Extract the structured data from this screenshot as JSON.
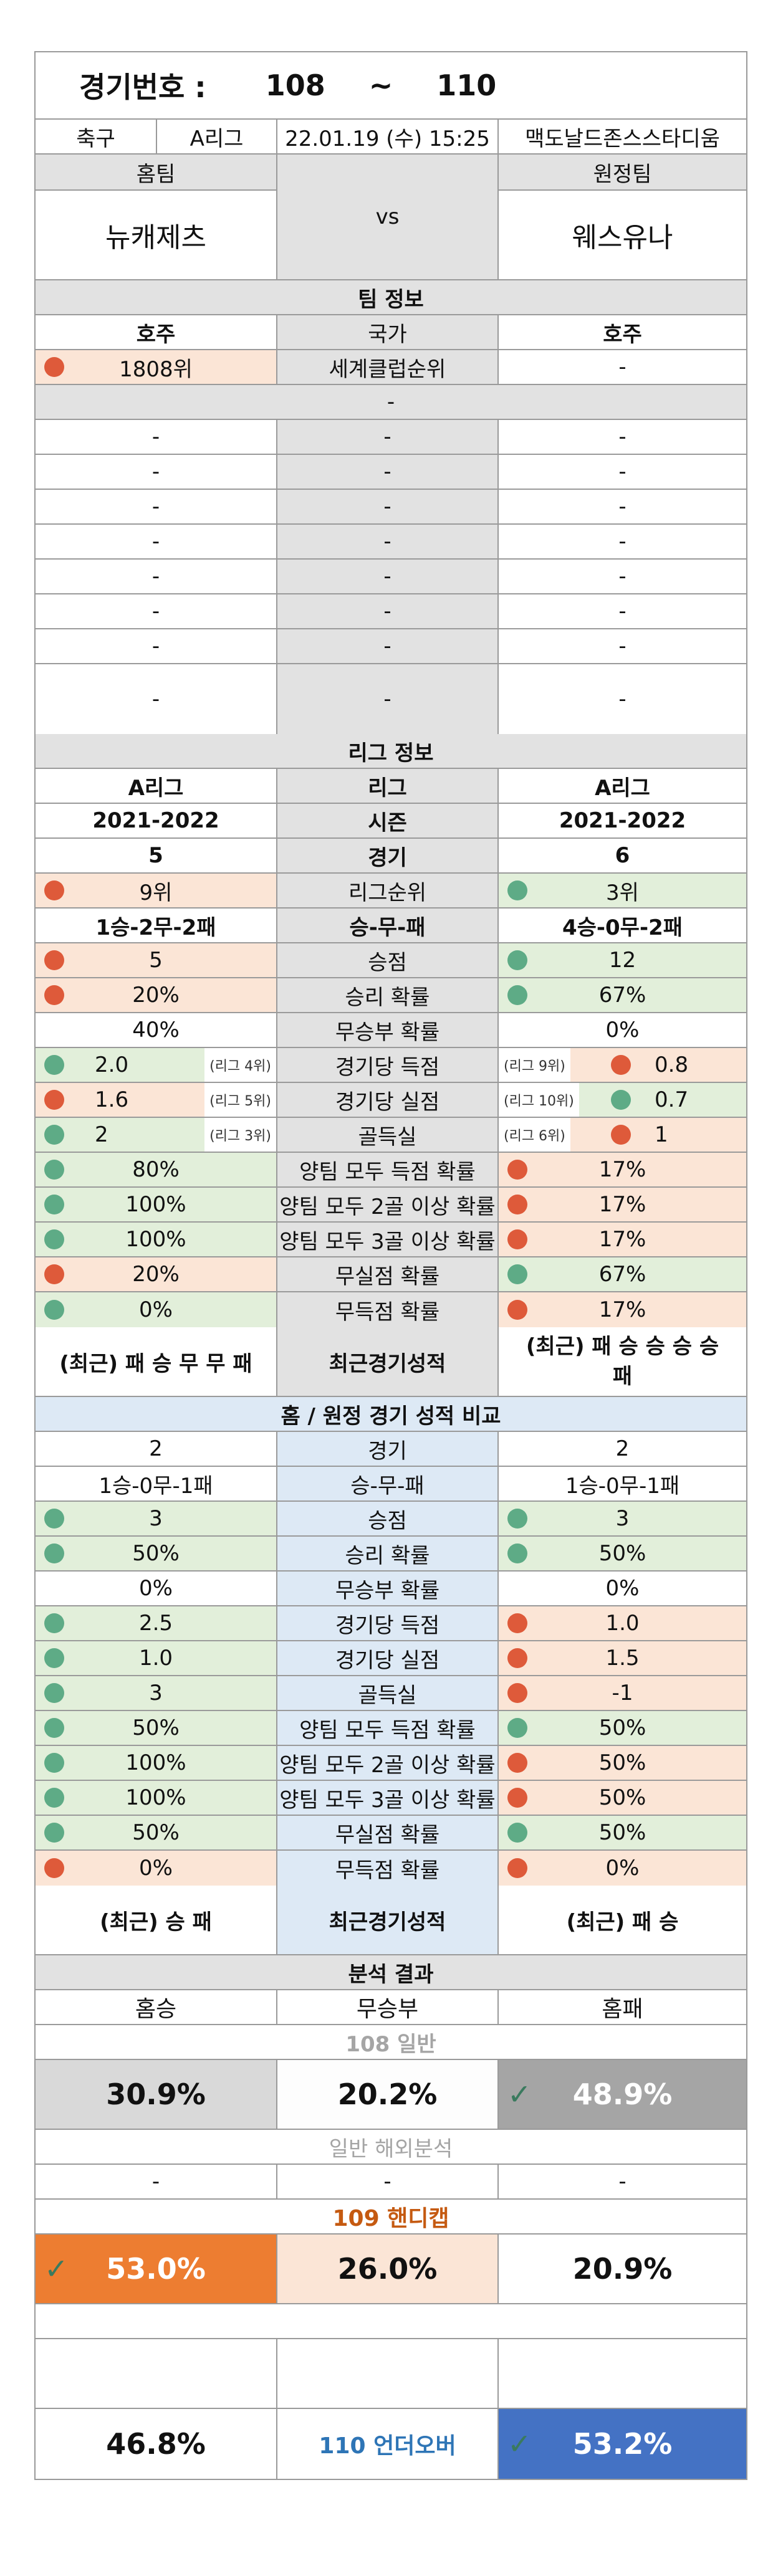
{
  "header": {
    "label": "경기번호 :",
    "from": "108",
    "sep": "~",
    "to": "110"
  },
  "match": {
    "sport": "축구",
    "league": "A리그",
    "datetime": "22.01.19 (수) 15:25",
    "venue": "맥도날드존스스타디움"
  },
  "teams": {
    "home_label": "홈팀",
    "away_label": "원정팀",
    "home": "뉴캐제츠",
    "vs": "vs",
    "away": "웨스유나"
  },
  "team_info": {
    "title": "팀 정보",
    "country_label": "국가",
    "home_country": "호주",
    "away_country": "호주",
    "rank_label": "세계클럽순위",
    "home_rank": "1808위",
    "away_rank": "-",
    "single_blank": "-",
    "blank_rows": [
      [
        "-",
        "-",
        "-"
      ],
      [
        "-",
        "-",
        "-"
      ],
      [
        "-",
        "-",
        "-"
      ],
      [
        "-",
        "-",
        "-"
      ],
      [
        "-",
        "-",
        "-"
      ],
      [
        "-",
        "-",
        "-"
      ],
      [
        "-",
        "-",
        "-"
      ],
      [
        "-",
        "-",
        "-"
      ]
    ]
  },
  "league_info": {
    "title": "리그 정보",
    "rows": [
      {
        "h": "A리그",
        "l": "리그",
        "a": "A리그"
      },
      {
        "h": "2021-2022",
        "l": "시즌",
        "a": "2021-2022"
      },
      {
        "h": "5",
        "l": "경기",
        "a": "6"
      },
      {
        "h": "9위",
        "l": "리그순위",
        "a": "3위"
      },
      {
        "h": "1승-2무-2패",
        "l": "승-무-패",
        "a": "4승-0무-2패"
      },
      {
        "h": "5",
        "l": "승점",
        "a": "12"
      },
      {
        "h": "20%",
        "l": "승리 확률",
        "a": "67%"
      },
      {
        "h": "40%",
        "l": "무승부 확률",
        "a": "0%"
      },
      {
        "h": "2.0",
        "hr": "(리그 4위)",
        "l": "경기당 득점",
        "ar": "(리그 9위)",
        "a": "0.8"
      },
      {
        "h": "1.6",
        "hr": "(리그 5위)",
        "l": "경기당 실점",
        "ar": "(리그 10위)",
        "a": "0.7"
      },
      {
        "h": "2",
        "hr": "(리그 3위)",
        "l": "골득실",
        "ar": "(리그 6위)",
        "a": "1"
      },
      {
        "h": "80%",
        "l": "양팀 모두 득점 확률",
        "a": "17%"
      },
      {
        "h": "100%",
        "l": "양팀 모두 2골 이상 확률",
        "a": "17%"
      },
      {
        "h": "100%",
        "l": "양팀 모두 3골 이상 확률",
        "a": "17%"
      },
      {
        "h": "20%",
        "l": "무실점 확률",
        "a": "67%"
      },
      {
        "h": "0%",
        "l": "무득점 확률",
        "a": "17%"
      }
    ],
    "recent_label": "최근경기성적",
    "home_recent": "(최근) 패 승 무 무 패",
    "away_recent_1": "(최근) 패 승 승 승 승",
    "away_recent_2": "패"
  },
  "ha_compare": {
    "title": "홈 / 원정 경기 성적 비교",
    "rows": [
      {
        "h": "2",
        "l": "경기",
        "a": "2"
      },
      {
        "h": "1승-0무-1패",
        "l": "승-무-패",
        "a": "1승-0무-1패"
      },
      {
        "h": "3",
        "l": "승점",
        "a": "3"
      },
      {
        "h": "50%",
        "l": "승리 확률",
        "a": "50%"
      },
      {
        "h": "0%",
        "l": "무승부 확률",
        "a": "0%"
      },
      {
        "h": "2.5",
        "l": "경기당 득점",
        "a": "1.0"
      },
      {
        "h": "1.0",
        "l": "경기당 실점",
        "a": "1.5"
      },
      {
        "h": "3",
        "l": "골득실",
        "a": "-1"
      },
      {
        "h": "50%",
        "l": "양팀 모두 득점 확률",
        "a": "50%"
      },
      {
        "h": "100%",
        "l": "양팀 모두 2골 이상 확률",
        "a": "50%"
      },
      {
        "h": "100%",
        "l": "양팀 모두 3골 이상 확률",
        "a": "50%"
      },
      {
        "h": "50%",
        "l": "무실점 확률",
        "a": "50%"
      },
      {
        "h": "0%",
        "l": "무득점 확률",
        "a": "0%"
      }
    ],
    "recent_label": "최근경기성적",
    "home_recent": "(최근) 승 패",
    "away_recent": "(최근) 패 승"
  },
  "analysis": {
    "title": "분석 결과",
    "col_home": "홈승",
    "col_draw": "무승부",
    "col_away": "홈패",
    "general_title": "108 일반",
    "general": {
      "home": "30.9%",
      "draw": "20.2%",
      "away": "48.9%"
    },
    "overseas_title": "일반 해외분석",
    "overseas": {
      "home": "-",
      "draw": "-",
      "away": "-"
    },
    "handicap_title": "109 핸디캡",
    "handicap": {
      "home": "53.0%",
      "draw": "26.0%",
      "away": "20.9%"
    },
    "ou": {
      "under": "46.8%",
      "label": "110 언더오버",
      "over": "53.2%"
    }
  },
  "colors": {
    "green_bg": "#e2efda",
    "pink_bg": "#fbe5d6",
    "orange": "#ed7d31",
    "blue": "#4472c4",
    "gray_dark": "#a5a5a5",
    "ou_label": "#2e75b6",
    "handicap_title": "#c55a11"
  },
  "icons": [
    "green-dot-icon",
    "red-dot-icon",
    "check-icon"
  ]
}
